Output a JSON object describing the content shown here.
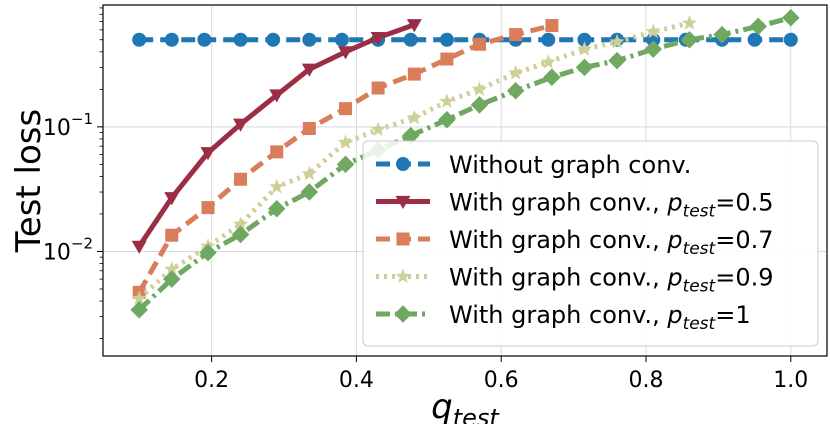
{
  "chart_data": {
    "type": "line",
    "xlabel": "q",
    "xlabel_sub": "test",
    "ylabel": "Test loss",
    "y_scale": "log",
    "xlim": [
      0.05,
      1.05
    ],
    "ylim": [
      0.00145,
      0.95
    ],
    "x_ticks": [
      {
        "value": 0.2,
        "label": "0.2"
      },
      {
        "value": 0.4,
        "label": "0.4"
      },
      {
        "value": 0.6,
        "label": "0.6"
      },
      {
        "value": 0.8,
        "label": "0.8"
      },
      {
        "value": 1.0,
        "label": "1.0"
      }
    ],
    "y_ticks": [
      {
        "value": 0.1,
        "base": "10",
        "exp": "−1"
      },
      {
        "value": 0.01,
        "base": "10",
        "exp": "−2"
      }
    ],
    "grid": true,
    "legend_position": "lower-right",
    "series": [
      {
        "legend": {
          "prefix": "Without graph conv."
        },
        "color": "#1f77b4",
        "dash": "14,7",
        "marker": "circle",
        "x": [
          0.1,
          0.145,
          0.19,
          0.24,
          0.285,
          0.335,
          0.38,
          0.43,
          0.475,
          0.525,
          0.57,
          0.62,
          0.665,
          0.715,
          0.76,
          0.81,
          0.855,
          0.905,
          0.95,
          1.0
        ],
        "y": [
          0.5,
          0.5,
          0.5,
          0.5,
          0.5,
          0.5,
          0.5,
          0.5,
          0.5,
          0.5,
          0.5,
          0.5,
          0.5,
          0.5,
          0.5,
          0.5,
          0.5,
          0.5,
          0.5,
          0.5
        ]
      },
      {
        "legend": {
          "prefix": "With graph conv., ",
          "p": "p",
          "sub": "test",
          "suffix": "=0.5"
        },
        "color": "#9b2d45",
        "dash": "",
        "marker": "triangle-down",
        "x": [
          0.1,
          0.145,
          0.195,
          0.24,
          0.29,
          0.335,
          0.385,
          0.43,
          0.48
        ],
        "y": [
          0.011,
          0.027,
          0.062,
          0.105,
          0.18,
          0.29,
          0.4,
          0.52,
          0.66
        ]
      },
      {
        "legend": {
          "prefix": "With graph conv., ",
          "p": "p",
          "sub": "test",
          "suffix": "=0.7"
        },
        "color": "#d97d5b",
        "dash": "14,7",
        "marker": "square",
        "x": [
          0.1,
          0.145,
          0.195,
          0.24,
          0.29,
          0.335,
          0.385,
          0.43,
          0.48,
          0.525,
          0.57,
          0.62,
          0.67
        ],
        "y": [
          0.0047,
          0.0135,
          0.0225,
          0.038,
          0.063,
          0.097,
          0.14,
          0.205,
          0.265,
          0.35,
          0.46,
          0.55,
          0.65
        ]
      },
      {
        "legend": {
          "prefix": "With graph conv., ",
          "p": "p",
          "sub": "test",
          "suffix": "=0.9"
        },
        "color": "#cfcf99",
        "dash": "3,5",
        "marker": "star",
        "x": [
          0.1,
          0.145,
          0.195,
          0.24,
          0.29,
          0.335,
          0.385,
          0.43,
          0.48,
          0.525,
          0.57,
          0.62,
          0.665,
          0.715,
          0.76,
          0.81,
          0.86
        ],
        "y": [
          0.0042,
          0.0072,
          0.011,
          0.0165,
          0.033,
          0.042,
          0.075,
          0.095,
          0.118,
          0.16,
          0.2,
          0.27,
          0.33,
          0.42,
          0.48,
          0.58,
          0.68
        ]
      },
      {
        "legend": {
          "prefix": "With graph conv., ",
          "p": "p",
          "sub": "test",
          "suffix": "=1"
        },
        "color": "#6fa860",
        "dash": "14,5,3,5",
        "marker": "diamond",
        "x": [
          0.1,
          0.145,
          0.195,
          0.24,
          0.29,
          0.335,
          0.385,
          0.43,
          0.475,
          0.525,
          0.57,
          0.62,
          0.67,
          0.715,
          0.76,
          0.81,
          0.86,
          0.905,
          0.955,
          1.0
        ],
        "y": [
          0.0034,
          0.006,
          0.0098,
          0.0137,
          0.022,
          0.03,
          0.05,
          0.065,
          0.085,
          0.114,
          0.15,
          0.195,
          0.25,
          0.3,
          0.34,
          0.42,
          0.5,
          0.55,
          0.64,
          0.75
        ]
      }
    ]
  }
}
